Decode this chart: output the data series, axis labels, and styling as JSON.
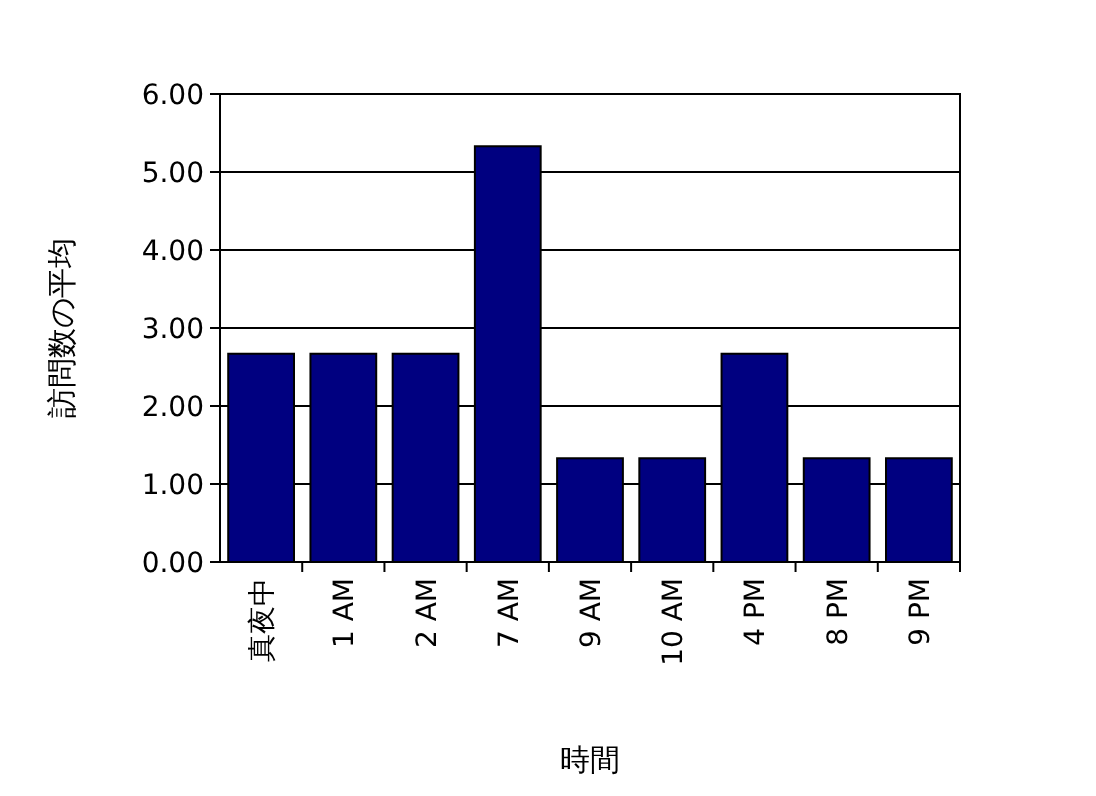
{
  "chart_data": {
    "type": "bar",
    "xlabel": "時間",
    "ylabel": "訪問数の平均",
    "categories": [
      "真夜中",
      "1 AM",
      "2 AM",
      "7 AM",
      "9 AM",
      "10 AM",
      "4 PM",
      "8 PM",
      "9 PM"
    ],
    "values": [
      2.67,
      2.67,
      2.67,
      5.33,
      1.33,
      1.33,
      2.67,
      1.33,
      1.33
    ],
    "color": "#000080",
    "ylim": [
      0,
      6
    ],
    "yticks": [
      {
        "value": 0,
        "label": "0.00"
      },
      {
        "value": 1,
        "label": "1.00"
      },
      {
        "value": 2,
        "label": "2.00"
      },
      {
        "value": 3,
        "label": "3.00"
      },
      {
        "value": 4,
        "label": "4.00"
      },
      {
        "value": 5,
        "label": "5.00"
      },
      {
        "value": 6,
        "label": "6.00"
      }
    ],
    "grid": "y"
  }
}
